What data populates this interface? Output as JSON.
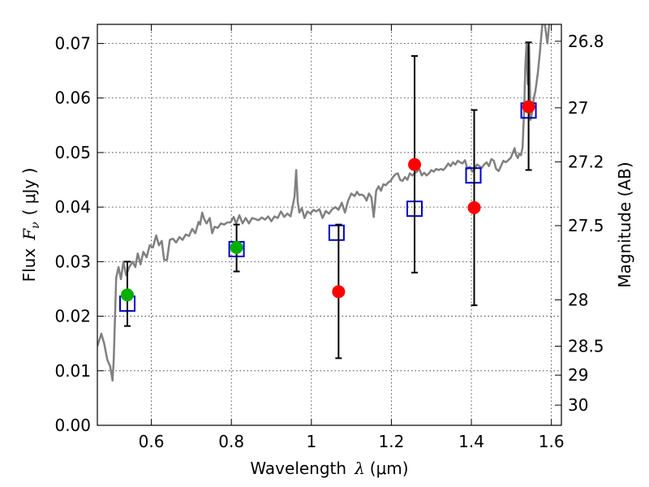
{
  "chart_data": {
    "type": "scatter",
    "title": "",
    "xlabel": "Wavelength",
    "xlabel_symbol": "λ",
    "xlabel_unit": "(μm)",
    "ylabel": "Flux",
    "ylabel_symbol": "F",
    "ylabel_subscript": "ν",
    "ylabel_unit": "( μJy )",
    "y2label": "Magnitude (AB)",
    "xlim": [
      0.465,
      1.625
    ],
    "ylim": [
      0.0,
      0.0735
    ],
    "grid": true,
    "x_ticks": [
      0.6,
      0.8,
      1.0,
      1.2,
      1.4,
      1.6
    ],
    "x_tick_labels": [
      "0.6",
      "0.8",
      "1",
      "1.2",
      "1.4",
      "1.6"
    ],
    "y_ticks": [
      0.0,
      0.01,
      0.02,
      0.03,
      0.04,
      0.05,
      0.06,
      0.07
    ],
    "y_tick_labels": [
      "0.00",
      "0.01",
      "0.02",
      "0.03",
      "0.04",
      "0.05",
      "0.06",
      "0.07"
    ],
    "y2_ticks": [
      {
        "label": "26.8",
        "flux": 0.0704
      },
      {
        "label": "27",
        "flux": 0.0582
      },
      {
        "label": "27.2",
        "flux": 0.0483
      },
      {
        "label": "27.5",
        "flux": 0.0366
      },
      {
        "label": "28",
        "flux": 0.023
      },
      {
        "label": "28.5",
        "flux": 0.0145
      },
      {
        "label": "29",
        "flux": 0.0092
      },
      {
        "label": "30",
        "flux": 0.0037
      }
    ],
    "series": [
      {
        "name": "model spectrum",
        "kind": "line",
        "color": "#808080",
        "points": [
          [
            0.465,
            0.0145
          ],
          [
            0.475,
            0.0168
          ],
          [
            0.482,
            0.015
          ],
          [
            0.49,
            0.012
          ],
          [
            0.497,
            0.0108
          ],
          [
            0.503,
            0.0082
          ],
          [
            0.506,
            0.012
          ],
          [
            0.512,
            0.027
          ],
          [
            0.518,
            0.029
          ],
          [
            0.524,
            0.0268
          ],
          [
            0.53,
            0.03
          ],
          [
            0.537,
            0.0275
          ],
          [
            0.545,
            0.029
          ],
          [
            0.553,
            0.03
          ],
          [
            0.56,
            0.029
          ],
          [
            0.566,
            0.0315
          ],
          [
            0.573,
            0.0295
          ],
          [
            0.58,
            0.0318
          ],
          [
            0.588,
            0.0308
          ],
          [
            0.596,
            0.033
          ],
          [
            0.604,
            0.0326
          ],
          [
            0.612,
            0.0348
          ],
          [
            0.619,
            0.033
          ],
          [
            0.626,
            0.0338
          ],
          [
            0.632,
            0.0303
          ],
          [
            0.639,
            0.0303
          ],
          [
            0.646,
            0.034
          ],
          [
            0.654,
            0.0342
          ],
          [
            0.662,
            0.0335
          ],
          [
            0.67,
            0.0345
          ],
          [
            0.678,
            0.034
          ],
          [
            0.686,
            0.035
          ],
          [
            0.694,
            0.0347
          ],
          [
            0.702,
            0.036
          ],
          [
            0.71,
            0.0352
          ],
          [
            0.718,
            0.0373
          ],
          [
            0.722,
            0.0368
          ],
          [
            0.727,
            0.039
          ],
          [
            0.732,
            0.0378
          ],
          [
            0.738,
            0.037
          ],
          [
            0.746,
            0.038
          ],
          [
            0.752,
            0.0352
          ],
          [
            0.758,
            0.0364
          ],
          [
            0.766,
            0.0362
          ],
          [
            0.774,
            0.037
          ],
          [
            0.782,
            0.0368
          ],
          [
            0.79,
            0.0372
          ],
          [
            0.798,
            0.0372
          ],
          [
            0.806,
            0.0382
          ],
          [
            0.812,
            0.037
          ],
          [
            0.82,
            0.0385
          ],
          [
            0.828,
            0.037
          ],
          [
            0.836,
            0.038
          ],
          [
            0.844,
            0.037
          ],
          [
            0.852,
            0.038
          ],
          [
            0.86,
            0.0378
          ],
          [
            0.868,
            0.0376
          ],
          [
            0.876,
            0.0381
          ],
          [
            0.884,
            0.0377
          ],
          [
            0.892,
            0.0383
          ],
          [
            0.9,
            0.0374
          ],
          [
            0.908,
            0.0383
          ],
          [
            0.916,
            0.038
          ],
          [
            0.924,
            0.0392
          ],
          [
            0.932,
            0.0382
          ],
          [
            0.94,
            0.0388
          ],
          [
            0.948,
            0.0383
          ],
          [
            0.953,
            0.04
          ],
          [
            0.958,
            0.042
          ],
          [
            0.962,
            0.0468
          ],
          [
            0.966,
            0.041
          ],
          [
            0.97,
            0.039
          ],
          [
            0.976,
            0.0398
          ],
          [
            0.983,
            0.038
          ],
          [
            0.99,
            0.0392
          ],
          [
            0.998,
            0.0388
          ],
          [
            1.005,
            0.0395
          ],
          [
            1.012,
            0.0392
          ],
          [
            1.02,
            0.0396
          ],
          [
            1.028,
            0.038
          ],
          [
            1.036,
            0.0393
          ],
          [
            1.044,
            0.0388
          ],
          [
            1.052,
            0.0396
          ],
          [
            1.06,
            0.04
          ],
          [
            1.068,
            0.0395
          ],
          [
            1.076,
            0.0408
          ],
          [
            1.084,
            0.039
          ],
          [
            1.092,
            0.0412
          ],
          [
            1.1,
            0.0425
          ],
          [
            1.108,
            0.042
          ],
          [
            1.114,
            0.0428
          ],
          [
            1.12,
            0.0422
          ],
          [
            1.126,
            0.0423
          ],
          [
            1.132,
            0.042
          ],
          [
            1.138,
            0.0412
          ],
          [
            1.144,
            0.0425
          ],
          [
            1.15,
            0.0418
          ],
          [
            1.156,
            0.0382
          ],
          [
            1.162,
            0.043
          ],
          [
            1.168,
            0.0438
          ],
          [
            1.174,
            0.043
          ],
          [
            1.18,
            0.0442
          ],
          [
            1.186,
            0.044
          ],
          [
            1.192,
            0.0445
          ],
          [
            1.198,
            0.0448
          ],
          [
            1.204,
            0.0455
          ],
          [
            1.21,
            0.046
          ],
          [
            1.216,
            0.0462
          ],
          [
            1.222,
            0.045
          ],
          [
            1.228,
            0.0448
          ],
          [
            1.234,
            0.0455
          ],
          [
            1.24,
            0.045
          ],
          [
            1.246,
            0.0462
          ],
          [
            1.252,
            0.0458
          ],
          [
            1.258,
            0.0462
          ],
          [
            1.264,
            0.0465
          ],
          [
            1.27,
            0.047
          ],
          [
            1.276,
            0.0458
          ],
          [
            1.282,
            0.0463
          ],
          [
            1.288,
            0.0458
          ],
          [
            1.294,
            0.0462
          ],
          [
            1.3,
            0.0468
          ],
          [
            1.306,
            0.0465
          ],
          [
            1.312,
            0.047
          ],
          [
            1.318,
            0.0468
          ],
          [
            1.324,
            0.047
          ],
          [
            1.33,
            0.0468
          ],
          [
            1.336,
            0.0473
          ],
          [
            1.342,
            0.048
          ],
          [
            1.348,
            0.0475
          ],
          [
            1.354,
            0.0482
          ],
          [
            1.36,
            0.0478
          ],
          [
            1.366,
            0.0485
          ],
          [
            1.372,
            0.0482
          ],
          [
            1.378,
            0.048
          ],
          [
            1.384,
            0.0486
          ],
          [
            1.39,
            0.047
          ],
          [
            1.396,
            0.0474
          ],
          [
            1.402,
            0.0465
          ],
          [
            1.408,
            0.047
          ],
          [
            1.414,
            0.0478
          ],
          [
            1.42,
            0.0475
          ],
          [
            1.426,
            0.0472
          ],
          [
            1.432,
            0.0478
          ],
          [
            1.438,
            0.0482
          ],
          [
            1.444,
            0.0475
          ],
          [
            1.45,
            0.0488
          ],
          [
            1.456,
            0.0485
          ],
          [
            1.462,
            0.047
          ],
          [
            1.468,
            0.0466
          ],
          [
            1.474,
            0.0475
          ],
          [
            1.48,
            0.0485
          ],
          [
            1.486,
            0.0482
          ],
          [
            1.492,
            0.0486
          ],
          [
            1.498,
            0.049
          ],
          [
            1.504,
            0.05
          ],
          [
            1.508,
            0.0508
          ],
          [
            1.512,
            0.0495
          ],
          [
            1.516,
            0.049
          ],
          [
            1.52,
            0.0498
          ],
          [
            1.524,
            0.0495
          ],
          [
            1.528,
            0.051
          ],
          [
            1.532,
            0.058
          ],
          [
            1.535,
            0.066
          ],
          [
            1.538,
            0.07
          ],
          [
            1.541,
            0.0625
          ],
          [
            1.544,
            0.07
          ],
          [
            1.548,
            0.056
          ],
          [
            1.552,
            0.0575
          ],
          [
            1.556,
            0.06
          ],
          [
            1.56,
            0.0612
          ],
          [
            1.566,
            0.0645
          ],
          [
            1.572,
            0.069
          ],
          [
            1.578,
            0.074
          ],
          [
            1.582,
            0.0745
          ],
          [
            1.59,
            0.07
          ],
          [
            1.596,
            0.0745
          ],
          [
            1.6,
            0.075
          ]
        ]
      },
      {
        "name": "model photometry",
        "kind": "open-square",
        "color": "#0000cc",
        "points": [
          [
            0.54,
            0.0223
          ],
          [
            0.813,
            0.0323
          ],
          [
            1.063,
            0.0353
          ],
          [
            1.258,
            0.0397
          ],
          [
            1.405,
            0.0458
          ],
          [
            1.543,
            0.0577
          ]
        ]
      },
      {
        "name": "observed flux (red)",
        "kind": "filled-circle",
        "color": "#ff0000",
        "points": [
          [
            1.068,
            0.0245
          ],
          [
            1.258,
            0.0478
          ],
          [
            1.407,
            0.0399
          ],
          [
            1.543,
            0.0584
          ]
        ]
      },
      {
        "name": "observed flux (green)",
        "kind": "filled-circle",
        "color": "#00b000",
        "points": [
          [
            0.54,
            0.0239
          ],
          [
            0.813,
            0.0326
          ]
        ]
      }
    ],
    "error_bars": [
      {
        "x": 0.54,
        "y_low": 0.0182,
        "y_high": 0.03
      },
      {
        "x": 0.813,
        "y_low": 0.0282,
        "y_high": 0.0368
      },
      {
        "x": 1.068,
        "y_low": 0.0123,
        "y_high": 0.0368
      },
      {
        "x": 1.258,
        "y_low": 0.028,
        "y_high": 0.0677
      },
      {
        "x": 1.407,
        "y_low": 0.022,
        "y_high": 0.0578
      },
      {
        "x": 1.543,
        "y_low": 0.0468,
        "y_high": 0.0702
      }
    ]
  }
}
